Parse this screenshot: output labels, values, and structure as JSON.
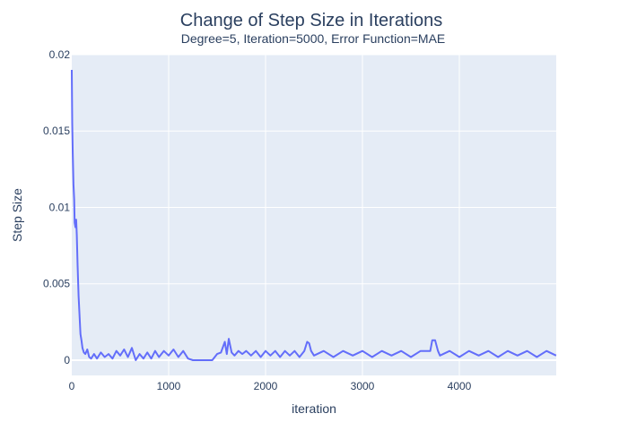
{
  "chart_data": {
    "type": "line",
    "title": "Change of Step Size in Iterations",
    "subtitle": "Degree=5, Iteration=5000, Error Function=MAE",
    "xlabel": "iteration",
    "ylabel": "Step Size",
    "xlim": [
      0,
      5000
    ],
    "ylim": [
      -0.001,
      0.02
    ],
    "x_ticks": [
      0,
      1000,
      2000,
      3000,
      4000
    ],
    "x_tick_labels": [
      "0",
      "1000",
      "2000",
      "3000",
      "4000"
    ],
    "y_ticks": [
      0,
      0.005,
      0.01,
      0.015,
      0.02
    ],
    "y_tick_labels": [
      "0",
      "0.005",
      "0.01",
      "0.015",
      "0.02"
    ],
    "grid": true,
    "line_color": "#636efa",
    "plot_bgcolor": "#e5ecf6",
    "series": [
      {
        "x": [
          0,
          5,
          10,
          18,
          25,
          30,
          38,
          45,
          52,
          60,
          70,
          80,
          90,
          100,
          110,
          125,
          140,
          160,
          180,
          200,
          230,
          260,
          300,
          340,
          380,
          420,
          460,
          500,
          540,
          580,
          620,
          660,
          700,
          740,
          780,
          820,
          860,
          900,
          950,
          1000,
          1050,
          1100,
          1150,
          1200,
          1250,
          1300,
          1350,
          1400,
          1450,
          1500,
          1540,
          1580,
          1600,
          1620,
          1650,
          1680,
          1720,
          1760,
          1800,
          1850,
          1900,
          1950,
          2000,
          2050,
          2100,
          2150,
          2200,
          2250,
          2300,
          2350,
          2400,
          2430,
          2450,
          2470,
          2500,
          2600,
          2700,
          2800,
          2900,
          3000,
          3100,
          3200,
          3300,
          3400,
          3500,
          3600,
          3700,
          3720,
          3750,
          3780,
          3800,
          3900,
          4000,
          4100,
          4200,
          4300,
          4400,
          4500,
          4600,
          4700,
          4800,
          4900,
          4999
        ],
        "y": [
          0.019,
          0.0155,
          0.0135,
          0.0115,
          0.0105,
          0.009,
          0.0087,
          0.0092,
          0.0082,
          0.0062,
          0.0042,
          0.003,
          0.0017,
          0.0013,
          0.0008,
          0.0005,
          0.0004,
          0.0007,
          0.0002,
          0.0001,
          0.0004,
          0.0001,
          0.0005,
          0.0002,
          0.0004,
          0.0001,
          0.0006,
          0.0003,
          0.0007,
          0.0002,
          0.0008,
          0.0,
          0.0004,
          0.0001,
          0.0005,
          0.0001,
          0.0006,
          0.0002,
          0.0006,
          0.0003,
          0.0007,
          0.0002,
          0.0006,
          0.0001,
          0.0,
          0.0,
          0.0,
          0.0,
          0.0,
          0.0004,
          0.0005,
          0.0012,
          0.0004,
          0.0014,
          0.0005,
          0.0003,
          0.0006,
          0.0004,
          0.0006,
          0.0003,
          0.0006,
          0.0002,
          0.0006,
          0.0003,
          0.0006,
          0.0002,
          0.0006,
          0.0003,
          0.0006,
          0.0002,
          0.0006,
          0.0012,
          0.0011,
          0.0006,
          0.0003,
          0.0006,
          0.0002,
          0.0006,
          0.0003,
          0.0006,
          0.0002,
          0.0006,
          0.0003,
          0.0006,
          0.0002,
          0.0006,
          0.0006,
          0.0013,
          0.0013,
          0.0006,
          0.0003,
          0.0006,
          0.0002,
          0.0006,
          0.0003,
          0.0006,
          0.0002,
          0.0006,
          0.0003,
          0.0006,
          0.0002,
          0.0006,
          0.0003
        ]
      }
    ]
  }
}
